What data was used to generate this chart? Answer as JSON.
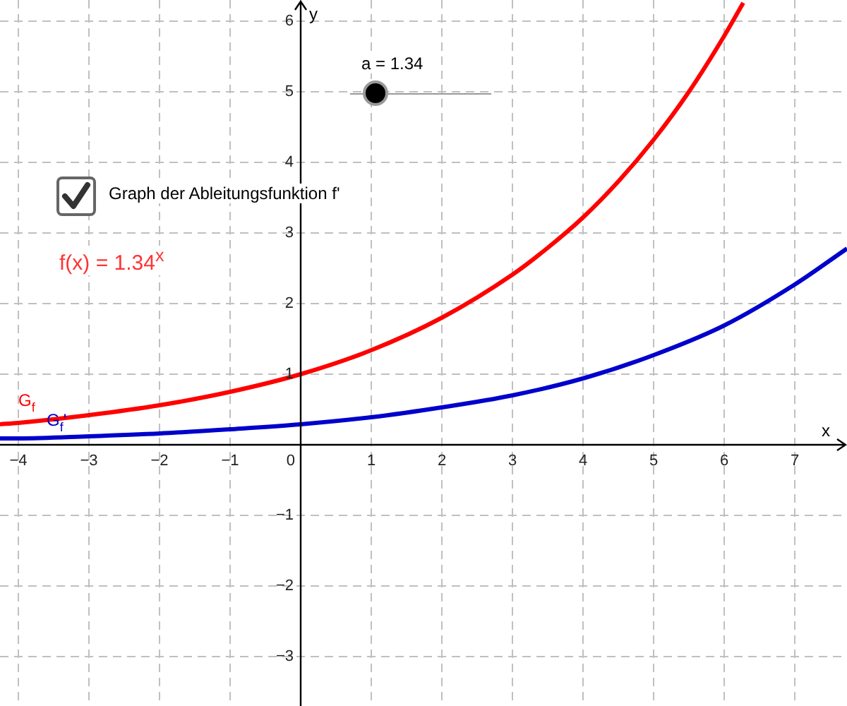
{
  "chart_data": {
    "type": "line",
    "xlabel": "x",
    "ylabel": "y",
    "xlim": [
      -4.26,
      7.74
    ],
    "ylim": [
      -3.7,
      6.3
    ],
    "xticks": [
      -4,
      -3,
      -2,
      -1,
      0,
      1,
      2,
      3,
      4,
      5,
      6,
      7
    ],
    "yticks": [
      -3,
      -2,
      -1,
      1,
      2,
      3,
      4,
      5,
      6
    ],
    "grid": true,
    "legend": false,
    "marker": "none",
    "line_style": "solid",
    "series": [
      {
        "name": "G$_{f}$",
        "color": "#ff0000",
        "x": [
          -4.26,
          -4,
          -3,
          -2,
          -1,
          0,
          1,
          2,
          3,
          3.5,
          4,
          4.5,
          5,
          5.5,
          6,
          6.27
        ],
        "values": [
          0.29,
          0.31,
          0.42,
          0.56,
          0.75,
          1,
          1.34,
          1.8,
          2.41,
          2.79,
          3.22,
          3.73,
          4.32,
          5.0,
          5.79,
          6.26
        ]
      },
      {
        "name": "G$_{f}$'",
        "color": "#0000cc",
        "x": [
          -4.26,
          -4,
          -3,
          -2,
          -1,
          0,
          1,
          2,
          3,
          4,
          5,
          6,
          7,
          7.74
        ],
        "values": [
          0.09,
          0.09,
          0.12,
          0.16,
          0.22,
          0.29,
          0.39,
          0.53,
          0.7,
          0.94,
          1.27,
          1.69,
          2.27,
          2.78
        ]
      }
    ],
    "annotations": [
      "a = 1.34",
      "Graph der Ableitungsfunktion f'",
      "f(x) = 1.34$^{x}$"
    ]
  }
}
